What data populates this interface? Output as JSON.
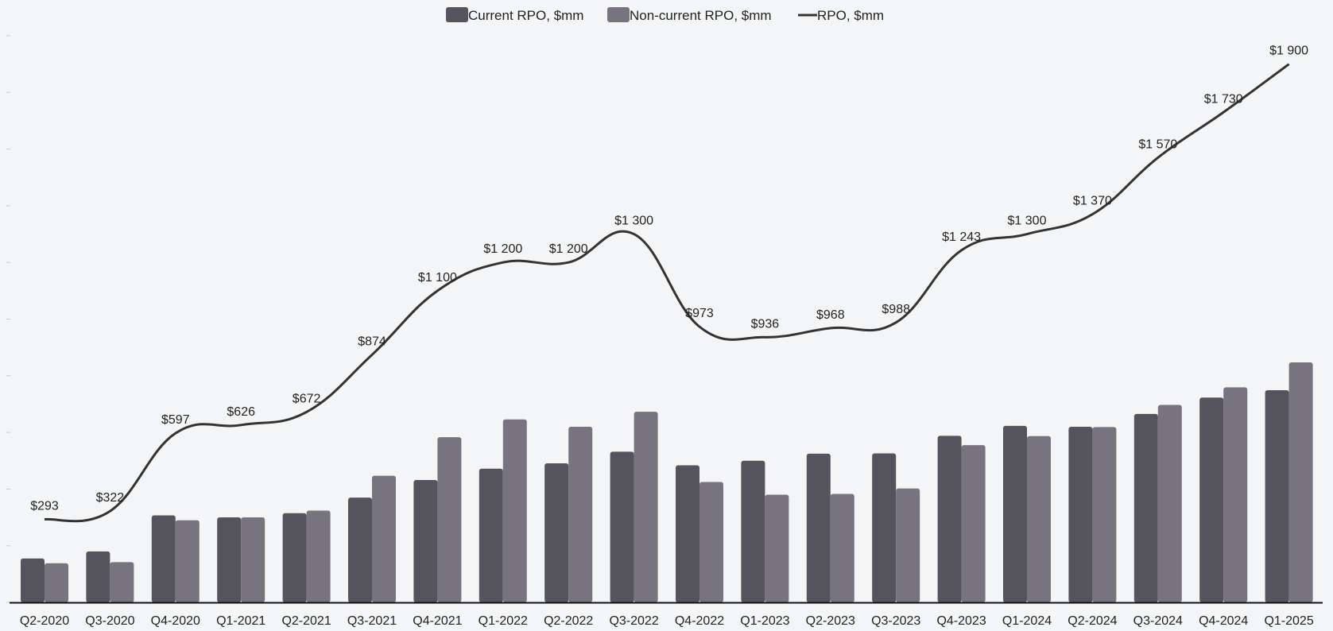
{
  "chart_data": {
    "type": "bar",
    "categories": [
      "Q2-2020",
      "Q3-2020",
      "Q4-2020",
      "Q1-2021",
      "Q2-2021",
      "Q3-2021",
      "Q4-2021",
      "Q1-2022",
      "Q2-2022",
      "Q3-2022",
      "Q4-2022",
      "Q1-2023",
      "Q2-2023",
      "Q3-2023",
      "Q4-2023",
      "Q1-2024",
      "Q2-2024",
      "Q3-2024",
      "Q4-2024",
      "Q1-2025"
    ],
    "series": [
      {
        "name": "Current RPO, $mm",
        "kind": "bar",
        "color": "#55535b",
        "values": [
          155,
          180,
          307,
          300,
          315,
          370,
          432,
          472,
          491,
          532,
          484,
          500,
          525,
          526,
          588,
          623,
          620,
          665,
          723,
          749
        ]
      },
      {
        "name": "Non-current RPO, $mm",
        "kind": "bar",
        "color": "#78747f",
        "values": [
          138,
          142,
          290,
          300,
          324,
          447,
          583,
          646,
          620,
          673,
          425,
          380,
          383,
          402,
          555,
          587,
          619,
          697,
          759,
          847
        ]
      },
      {
        "name": "RPO, $mm",
        "kind": "line",
        "color": "#333333",
        "values": [
          293,
          322,
          597,
          626,
          672,
          874,
          1100,
          1200,
          1200,
          1300,
          973,
          936,
          968,
          988,
          1243,
          1300,
          1370,
          1570,
          1730,
          1900
        ],
        "labels": [
          "$293",
          "$322",
          "$597",
          "$626",
          "$672",
          "$874",
          "$1 100",
          "$1 200",
          "$1 200",
          "$1 300",
          "$973",
          "$936",
          "$968",
          "$988",
          "$1 243",
          "$1 300",
          "$1 370",
          "$1 570",
          "$1 730",
          "$1 900"
        ]
      }
    ],
    "ylim": [
      0,
      2000
    ],
    "legend": "top-center",
    "grid": false
  }
}
